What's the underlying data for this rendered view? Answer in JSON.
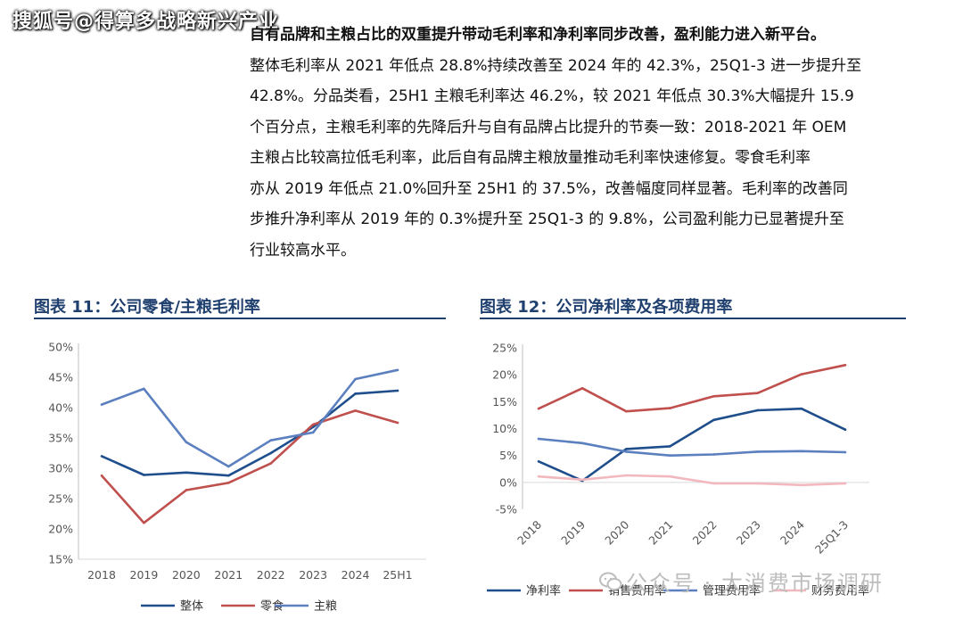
{
  "watermark_top": "搜狐号@得算多战略新兴产业",
  "paragraph": {
    "headline": "自有品牌和主粮占比的双重提升带动毛利率和净利率同步改善，盈利能力进入新平台。",
    "lines": [
      "整体毛利率从 2021 年低点 28.8%持续改善至 2024 年的 42.3%，25Q1-3 进一步提升至",
      "42.8%。分品类看，25H1 主粮毛利率达 46.2%，较 2021 年低点 30.3%大幅提升 15.9",
      "个百分点，主粮毛利率的先降后升与自有品牌占比提升的节奏一致：2018-2021 年 OEM",
      "主粮占比较高拉低毛利率，此后自有品牌主粮放量推动毛利率快速修复。零食毛利率",
      "亦从 2019 年低点 21.0%回升至 25H1 的 37.5%，改善幅度同样显著。毛利率的改善同",
      "步推升净利率从 2019 年的 0.3%提升至 25Q1-3 的 9.8%，公司盈利能力已显著提升至",
      "行业较高水平。"
    ]
  },
  "figure_left_title": "图表 11：公司零食/主粮毛利率",
  "figure_right_title": "图表 12：公司净利率及各项费用率",
  "watermark_bottom": "公众号 · 大消费市场调研",
  "chart_data": [
    {
      "type": "line",
      "categories": [
        "2018",
        "2019",
        "2020",
        "2021",
        "2022",
        "2023",
        "2024",
        "25H1"
      ],
      "ylim": [
        0.15,
        0.5
      ],
      "yticks": [
        "15%",
        "20%",
        "25%",
        "30%",
        "35%",
        "40%",
        "45%",
        "50%"
      ],
      "grid": false,
      "legend": "bottom",
      "series": [
        {
          "name": "整体",
          "color": "#1f4e8c",
          "values": [
            0.32,
            0.289,
            0.293,
            0.288,
            0.325,
            0.368,
            0.423,
            0.428
          ]
        },
        {
          "name": "零食",
          "color": "#c0504d",
          "values": [
            0.288,
            0.21,
            0.264,
            0.276,
            0.308,
            0.372,
            0.395,
            0.375
          ]
        },
        {
          "name": "主粮",
          "color": "#5b7fbf",
          "values": [
            0.405,
            0.431,
            0.343,
            0.303,
            0.346,
            0.359,
            0.447,
            0.462
          ]
        }
      ]
    },
    {
      "type": "line",
      "categories": [
        "2018",
        "2019",
        "2020",
        "2021",
        "2022",
        "2023",
        "2024",
        "25Q1-3"
      ],
      "ylim": [
        -0.05,
        0.25
      ],
      "yticks": [
        "-5%",
        "0%",
        "5%",
        "10%",
        "15%",
        "20%",
        "25%"
      ],
      "grid": false,
      "legend": "bottom",
      "series": [
        {
          "name": "净利率",
          "color": "#1f4e8c",
          "values": [
            0.039,
            0.003,
            0.062,
            0.067,
            0.116,
            0.134,
            0.137,
            0.098
          ]
        },
        {
          "name": "销售费用率",
          "color": "#c0504d",
          "values": [
            0.137,
            0.175,
            0.132,
            0.138,
            0.16,
            0.166,
            0.201,
            0.218
          ]
        },
        {
          "name": "管理费用率",
          "color": "#5b7fbf",
          "values": [
            0.081,
            0.073,
            0.057,
            0.05,
            0.052,
            0.057,
            0.058,
            0.056
          ]
        },
        {
          "name": "财务费用率",
          "color": "#f2b8bd",
          "values": [
            0.011,
            0.005,
            0.013,
            0.011,
            -0.002,
            -0.002,
            -0.005,
            -0.002
          ]
        }
      ]
    }
  ]
}
